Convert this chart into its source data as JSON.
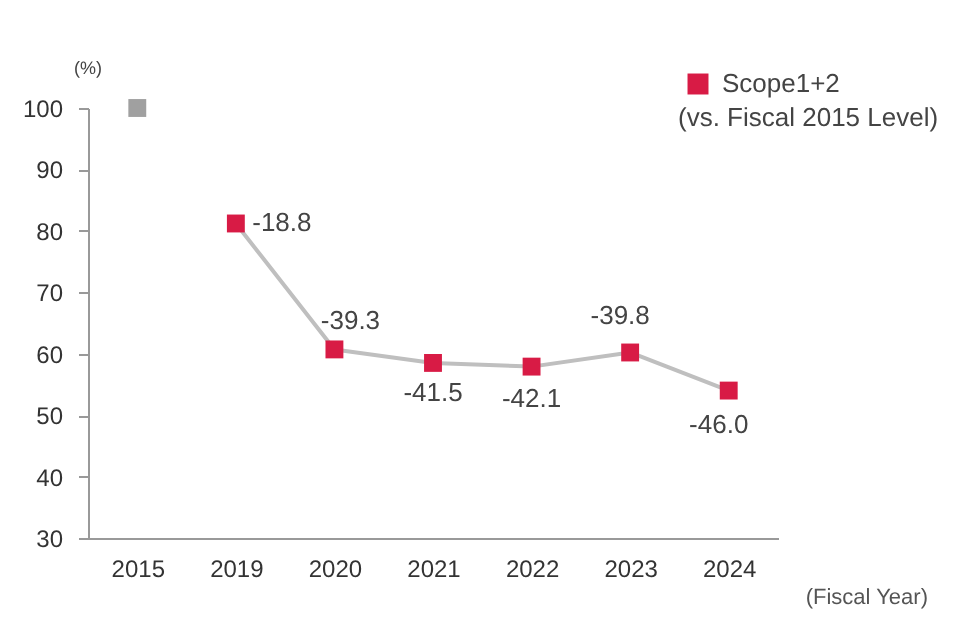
{
  "chart_data": {
    "type": "line",
    "categories": [
      "2015",
      "2019",
      "2020",
      "2021",
      "2022",
      "2023",
      "2024"
    ],
    "series": [
      {
        "type": "scatter",
        "color": "#a0a0a0",
        "values": [
          100,
          null,
          null,
          null,
          null,
          null,
          null
        ],
        "marker": "square"
      },
      {
        "line_style": "solid",
        "name": "Scope1+2\n(vs. Fiscal 2015 Level)",
        "color": "#d81b45",
        "values": [
          null,
          81.2,
          60.7,
          58.5,
          57.9,
          60.2,
          54.0
        ],
        "marker": "square"
      }
    ],
    "annotations": [
      {
        "text": "-18.8",
        "x": "2019",
        "y": 81.2
      },
      {
        "text": "-39.3",
        "x": "2020",
        "y": 60.7
      },
      {
        "text": "-41.5",
        "x": "2021",
        "y": 58.5
      },
      {
        "text": "-42.1",
        "x": "2022",
        "y": 57.9
      },
      {
        "text": "-39.8",
        "x": "2023",
        "y": 60.2
      },
      {
        "text": "-46.0",
        "x": "2024",
        "y": 54.0
      }
    ],
    "ylabel": "(%)",
    "xlabel": "(Fiscal Year)",
    "ylim": [
      30,
      100
    ],
    "yticks": [
      30,
      40,
      50,
      60,
      70,
      80,
      90,
      100
    ],
    "grid": false,
    "legend": "top right"
  }
}
